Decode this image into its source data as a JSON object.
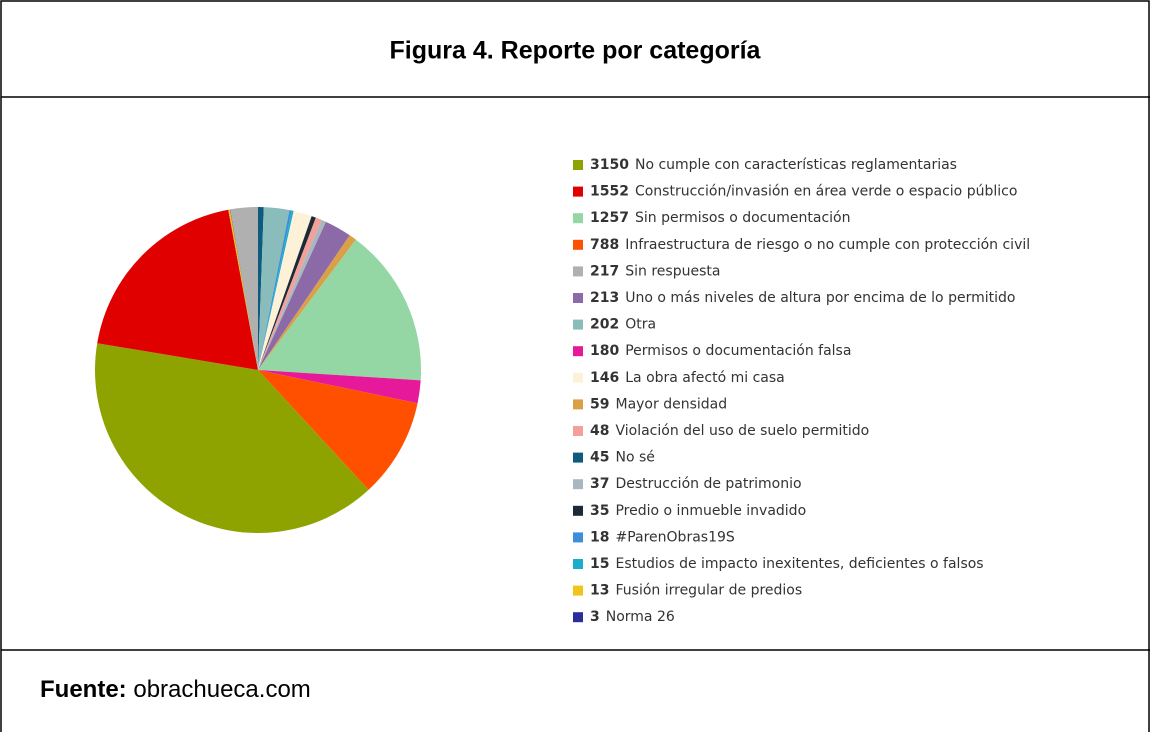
{
  "chart_data": {
    "type": "pie",
    "title": "Figura 4. Reporte por categoría",
    "categories": [
      "No cumple con características reglamentarias",
      "Construcción/invasión en área verde o espacio público",
      "Sin permisos o documentación",
      "Infraestructura de riesgo o no cumple con protección civil",
      "Sin respuesta",
      "Uno o más niveles de altura por encima de lo permitido",
      "Otra",
      "Permisos o documentación falsa",
      "La obra afectó mi casa",
      "Mayor densidad",
      "Violación del uso de suelo permitido",
      "No sé",
      "Destrucción de patrimonio",
      "Predio o inmueble invadido",
      "#ParenObras19S",
      "Estudios de impacto inexitentes, deficientes o falsos",
      "Fusión irregular de predios",
      "Norma 26"
    ],
    "values": [
      3150,
      1552,
      1257,
      788,
      217,
      213,
      202,
      180,
      146,
      59,
      48,
      45,
      37,
      35,
      18,
      15,
      13,
      3
    ],
    "colors": [
      "#8fa300",
      "#e00000",
      "#94d6a4",
      "#ff5000",
      "#b0b0b0",
      "#8c6aa8",
      "#8bbcbc",
      "#e6199b",
      "#fdf1d8",
      "#d9a046",
      "#f4a09a",
      "#0d5c7e",
      "#a9b8c0",
      "#1c2a38",
      "#3a8fd8",
      "#1aaecb",
      "#f0c419",
      "#2b2e9a"
    ]
  },
  "source": {
    "label": "Fuente:",
    "text": "obrachueca.com"
  }
}
